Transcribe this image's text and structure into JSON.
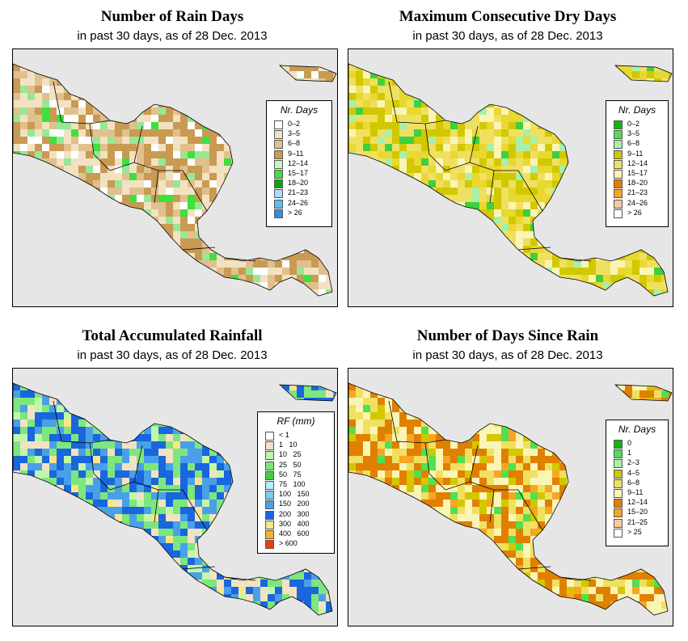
{
  "panels": [
    {
      "title": "Number of Rain Days",
      "subtitle": "in past 30 days, as of  28 Dec. 2013",
      "legend": {
        "title": "Nr. Days",
        "items": [
          {
            "label": "0–2",
            "color": "#ffffff"
          },
          {
            "label": "3–5",
            "color": "#f3e2c2"
          },
          {
            "label": "6–8",
            "color": "#e2c08d"
          },
          {
            "label": "9–11",
            "color": "#c89a52"
          },
          {
            "label": "12–14",
            "color": "#c2f7c2"
          },
          {
            "label": "15–17",
            "color": "#3ee03e"
          },
          {
            "label": "18–20",
            "color": "#0aa50a"
          },
          {
            "label": "21–23",
            "color": "#a8dcf8"
          },
          {
            "label": "24–26",
            "color": "#62bcee"
          },
          {
            "label": "> 26",
            "color": "#2f8fe0"
          }
        ]
      },
      "map_colors": {
        "land": "#f3e2c2",
        "sea": "#e6e6e6",
        "a": "#c89a52",
        "b": "#e2c08d",
        "c": "#ffffff",
        "d": "#96e896",
        "e": "#3ee03e"
      }
    },
    {
      "title": "Maximum Consecutive Dry Days",
      "subtitle": "in past 30 days, as of  28 Dec. 2013",
      "legend": {
        "title": "Nr. Days",
        "items": [
          {
            "label": "0–2",
            "color": "#11b811"
          },
          {
            "label": "3–5",
            "color": "#50e050"
          },
          {
            "label": "6–8",
            "color": "#a8f0a8"
          },
          {
            "label": "9–11",
            "color": "#d2c800"
          },
          {
            "label": "12–14",
            "color": "#f0e060"
          },
          {
            "label": "15–17",
            "color": "#fbf5b5"
          },
          {
            "label": "18–20",
            "color": "#e08000"
          },
          {
            "label": "21–23",
            "color": "#f7a623"
          },
          {
            "label": "24–26",
            "color": "#f8c89a"
          },
          {
            "label": "> 26",
            "color": "#ffffff"
          }
        ]
      },
      "map_colors": {
        "land": "#d2c800",
        "sea": "#e6e6e6",
        "a": "#f0e060",
        "b": "#e8d830",
        "c": "#fbf5b5",
        "d": "#a8f0a8",
        "e": "#3ed03e"
      }
    },
    {
      "title": "Total Accumulated Rainfall",
      "subtitle": "in past 30 days, as of  28 Dec. 2013",
      "legend": {
        "title": "RF (mm)",
        "items": [
          {
            "label": "< 1",
            "color": "#ffffff"
          },
          {
            "label": "1   10",
            "color": "#f3e2c2"
          },
          {
            "label": "10   25",
            "color": "#c2f7a8"
          },
          {
            "label": "25   50",
            "color": "#7ee67e"
          },
          {
            "label": "50   75",
            "color": "#3ed23e"
          },
          {
            "label": "75   100",
            "color": "#b4eef8"
          },
          {
            "label": "100   150",
            "color": "#80c8f0"
          },
          {
            "label": "150   200",
            "color": "#4aa0e8"
          },
          {
            "label": "200   300",
            "color": "#1a66dc"
          },
          {
            "label": "300   400",
            "color": "#fbe48a"
          },
          {
            "label": "400   600",
            "color": "#f7b02a"
          },
          {
            "label": "> 600",
            "color": "#f03c0c"
          }
        ]
      },
      "map_colors": {
        "land": "#7ee67e",
        "sea": "#e6e6e6",
        "a": "#1a66dc",
        "b": "#4aa0e8",
        "c": "#f3e2c2",
        "d": "#c2f7a8",
        "e": "#fbe48a"
      }
    },
    {
      "title": "Number of Days Since Rain",
      "subtitle": "in past 30 days, as of  28 Dec. 2013",
      "legend": {
        "title": "Nr. Days",
        "items": [
          {
            "label": "0",
            "color": "#11b811"
          },
          {
            "label": "1",
            "color": "#50e050"
          },
          {
            "label": "2–3",
            "color": "#a8f0a8"
          },
          {
            "label": "4–5",
            "color": "#d2c800"
          },
          {
            "label": "6–8",
            "color": "#f0e060"
          },
          {
            "label": "9–11",
            "color": "#fbf5b5"
          },
          {
            "label": "12–14",
            "color": "#e08000"
          },
          {
            "label": "15–20",
            "color": "#f7a623"
          },
          {
            "label": "21–25",
            "color": "#f8c89a"
          },
          {
            "label": "> 25",
            "color": "#ffffff"
          }
        ]
      },
      "map_colors": {
        "land": "#fbf5b5",
        "sea": "#e6e6e6",
        "a": "#e08000",
        "b": "#f0e060",
        "c": "#f7a623",
        "d": "#d2c800",
        "e": "#50e050"
      }
    }
  ]
}
